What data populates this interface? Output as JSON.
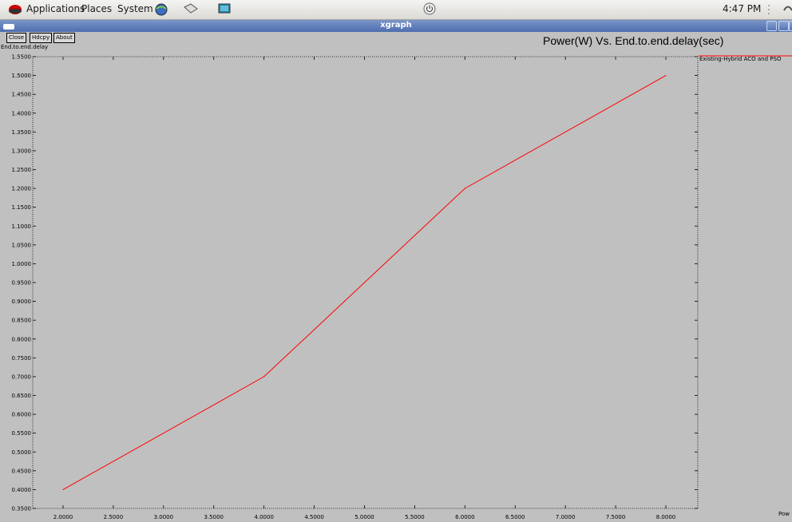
{
  "panel": {
    "applications": "Applications",
    "places": "Places",
    "system": "System",
    "clock": "4:47 PM"
  },
  "window": {
    "title": "xgraph"
  },
  "buttons": {
    "close": "Close",
    "hdcpy": "Hdcpy",
    "about": "About"
  },
  "corner_text": "Pow",
  "colors": {
    "series": "#ff0000",
    "background": "#c0c0c0",
    "titlebar": "#5b78b8"
  },
  "chart_data": {
    "type": "line",
    "title": "Power(W) Vs. End.to.end.delay(sec)",
    "xlabel": "",
    "ylabel": "End.to.end.delay",
    "xlim": [
      1.7,
      8.3
    ],
    "ylim": [
      0.35,
      1.55
    ],
    "xticks": [
      "2.0000",
      "2.5000",
      "3.0000",
      "3.5000",
      "4.0000",
      "4.5000",
      "5.0000",
      "5.5000",
      "6.0000",
      "6.5000",
      "7.0000",
      "7.5000",
      "8.0000"
    ],
    "yticks": [
      "0.3500",
      "0.4000",
      "0.4500",
      "0.5000",
      "0.5500",
      "0.6000",
      "0.6500",
      "0.7000",
      "0.7500",
      "0.8000",
      "0.8500",
      "0.9000",
      "0.9500",
      "1.0000",
      "1.0500",
      "1.1000",
      "1.1500",
      "1.2000",
      "1.2500",
      "1.3000",
      "1.3500",
      "1.4000",
      "1.4500",
      "1.5000",
      "1.5500"
    ],
    "grid": false,
    "legend_position": "right",
    "series": [
      {
        "name": "Existing-Hybrid ACO and PSO",
        "x": [
          2,
          4,
          6,
          8
        ],
        "y": [
          0.4,
          0.7,
          1.2,
          1.5
        ]
      }
    ]
  }
}
